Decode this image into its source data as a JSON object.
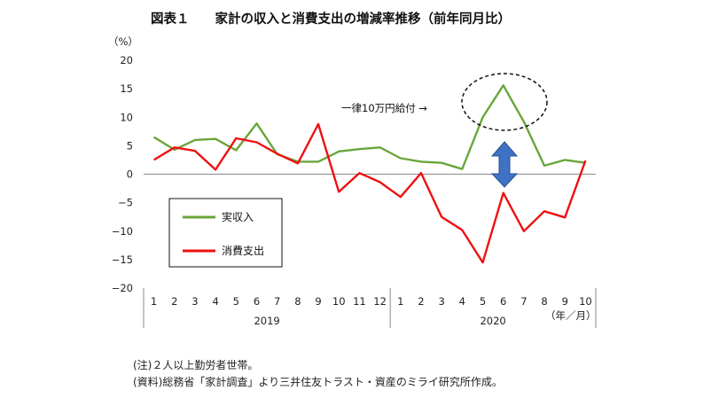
{
  "chart_data": {
    "type": "line",
    "title": "図表１　　家計の収入と消費支出の増減率推移（前年同月比）",
    "ylabel": "（%）",
    "xunit": "（年／月）",
    "ylim": [
      -20,
      20
    ],
    "yticks": [
      -20,
      -15,
      -10,
      -5,
      0,
      5,
      10,
      15,
      20
    ],
    "x": [
      "1",
      "2",
      "3",
      "4",
      "5",
      "6",
      "7",
      "8",
      "9",
      "10",
      "11",
      "12",
      "1",
      "2",
      "3",
      "4",
      "5",
      "6",
      "7",
      "8",
      "9",
      "10"
    ],
    "year_groups": [
      {
        "label": "2019",
        "count": 12
      },
      {
        "label": "2020",
        "count": 10
      }
    ],
    "series": [
      {
        "name": "実収入",
        "color": "#6aa63a",
        "values": [
          6.5,
          4.3,
          6.0,
          6.2,
          4.2,
          8.9,
          3.5,
          2.2,
          2.2,
          4.0,
          4.4,
          4.7,
          2.8,
          2.2,
          2.0,
          0.9,
          10.0,
          15.6,
          9.2,
          1.5,
          2.5,
          2.0
        ]
      },
      {
        "name": "消費支出",
        "color": "#ee1111",
        "values": [
          2.5,
          4.7,
          4.1,
          0.8,
          6.3,
          5.6,
          3.6,
          1.9,
          8.8,
          -3.1,
          0.2,
          -1.4,
          -4.0,
          0.2,
          -7.5,
          -9.8,
          -15.5,
          -3.3,
          -10.0,
          -6.5,
          -7.6,
          2.4
        ]
      }
    ],
    "legend": "bottom-left",
    "annotations": [
      {
        "text": "一律10万円給付 →"
      }
    ]
  },
  "notes": [
    "(注)２人以上勤労者世帯。",
    "(資料)総務省「家計調査」より三井住友トラスト・資産のミライ研究所作成。"
  ],
  "colors": {
    "arrow": "#3f72c4",
    "arrow_stroke": "#2a4f8f"
  }
}
